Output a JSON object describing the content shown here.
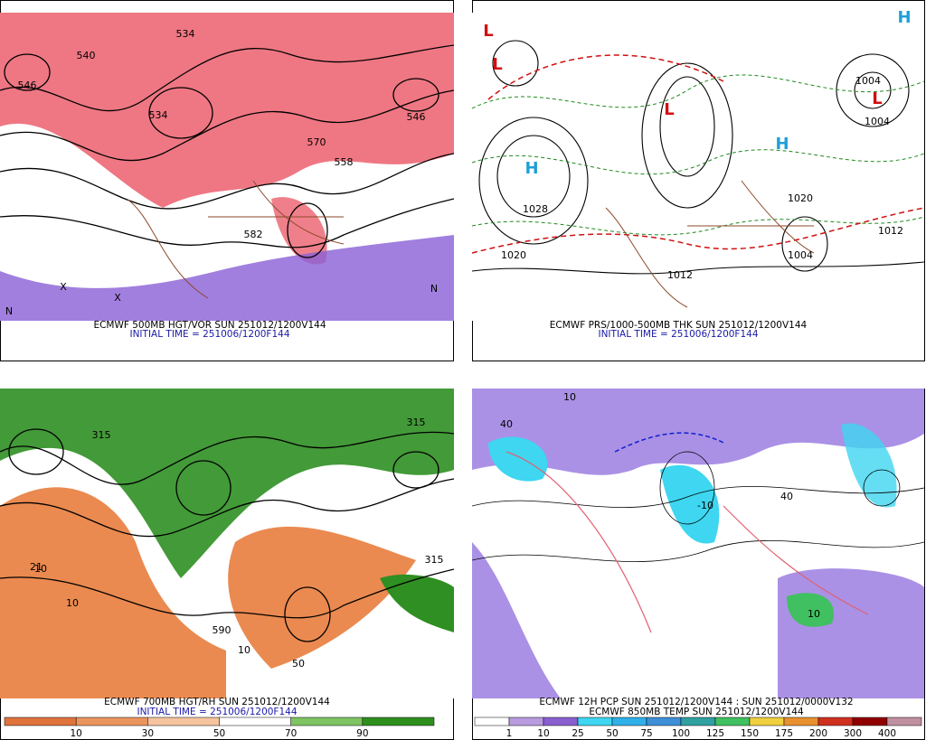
{
  "panels": [
    {
      "captions": [
        "ECMWF 500MB HGT/VOR SUN 251012/1200V144",
        "INITIAL TIME = 251006/1200F144"
      ],
      "labels": [
        "540",
        "534",
        "546",
        "534",
        "570",
        "558",
        "582",
        "546",
        "X",
        "X",
        "N",
        "N"
      ]
    },
    {
      "captions": [
        "ECMWF PRS/1000-500MB THK SUN 251012/1200V144",
        "INITIAL TIME = 251006/1200F144"
      ],
      "labels": [
        "L",
        "L",
        "H",
        "1028",
        "1020",
        "L",
        "H",
        "1004",
        "L",
        "1012",
        "1004",
        "1012",
        "H",
        "1004",
        "1020"
      ]
    },
    {
      "captions": [
        "ECMWF 700MB HGT/RH SUN 251012/1200V144",
        "INITIAL TIME = 251006/1200F144"
      ],
      "labels": [
        "315",
        "10",
        "21",
        "10",
        "590",
        "10",
        "315",
        "50",
        "315"
      ],
      "colorbar": {
        "labels": [
          "10",
          "30",
          "50",
          "70",
          "90"
        ],
        "colors": [
          "#e0733c",
          "#eb955e",
          "#f6c49e",
          "#ffffff",
          "#7ec462",
          "#2e8f1e"
        ]
      }
    },
    {
      "captions": [
        "ECMWF 12H PCP SUN 251012/1200V144 : SUN 251012/0000V132",
        "ECMWF 850MB TEMP SUN 251012/1200V144"
      ],
      "labels": [
        "10",
        "40",
        "10",
        "-10",
        "40"
      ],
      "colorbar": {
        "labels": [
          "1",
          "10",
          "25",
          "50",
          "75",
          "100",
          "125",
          "150",
          "175",
          "200",
          "300",
          "400"
        ],
        "colors": [
          "#ffffff",
          "#b99be0",
          "#8a5fd0",
          "#3ed6f0",
          "#2fb0e8",
          "#3e8fd8",
          "#30a0a0",
          "#40c060",
          "#f0d040",
          "#e89030",
          "#d03020",
          "#900000",
          "#c090a0"
        ]
      }
    }
  ]
}
